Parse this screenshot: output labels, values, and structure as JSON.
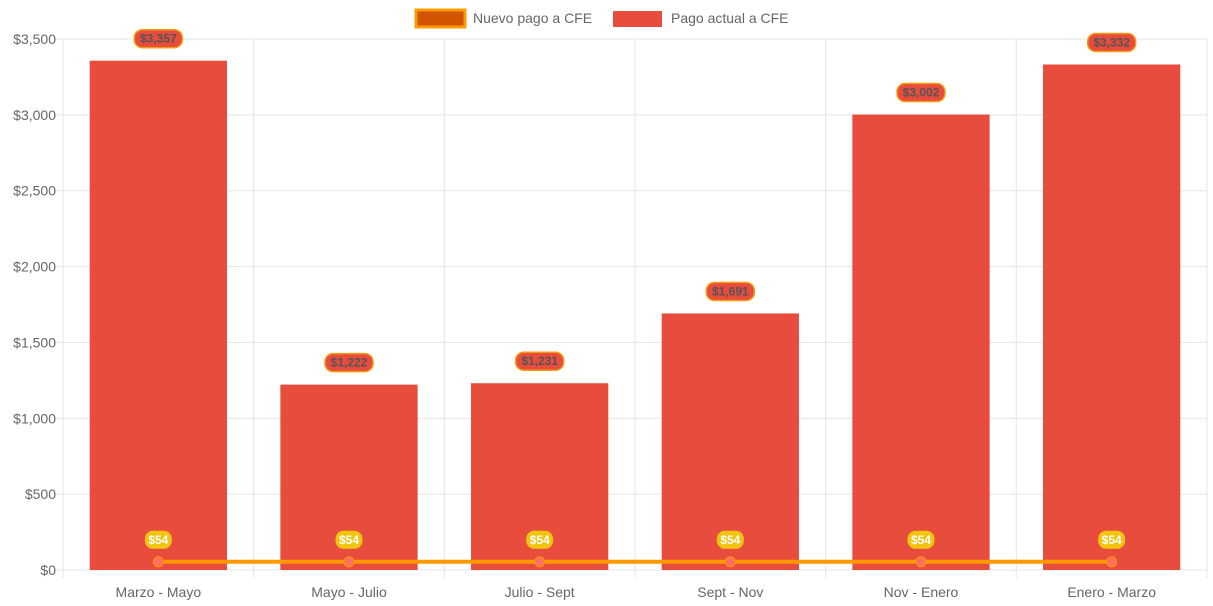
{
  "chart_data": {
    "type": "bar",
    "categories": [
      "Marzo - Mayo",
      "Mayo - Julio",
      "Julio - Sept",
      "Sept - Nov",
      "Nov - Enero",
      "Enero - Marzo"
    ],
    "series": [
      {
        "name": "Nuevo pago a CFE",
        "type": "line",
        "values": [
          54,
          54,
          54,
          54,
          54,
          54
        ],
        "labels": [
          "$54",
          "$54",
          "$54",
          "$54",
          "$54",
          "$54"
        ],
        "color": "#ff9900",
        "fill": "#d35400"
      },
      {
        "name": "Pago actual a CFE",
        "type": "bar",
        "values": [
          3357,
          1222,
          1231,
          1691,
          3002,
          3332
        ],
        "labels": [
          "$3,357",
          "$1,222",
          "$1,231",
          "$1,691",
          "$3,002",
          "$3,332"
        ],
        "color": "#e74c3c"
      }
    ],
    "ylim": [
      0,
      3500
    ],
    "yticks": [
      0,
      500,
      1000,
      1500,
      2000,
      2500,
      3000,
      3500
    ],
    "ytick_labels": [
      "$0",
      "$500",
      "$1,000",
      "$1,500",
      "$2,000",
      "$2,500",
      "$3,000",
      "$3,500"
    ],
    "grid": true,
    "legend": "top-center",
    "colors": {
      "bar_label_bg": "#e74c3c",
      "bar_label_border": "#f39c12",
      "line_label_bg": "#f1c40f",
      "point": "#ff6f61",
      "grid": "#e5e5e5"
    }
  }
}
